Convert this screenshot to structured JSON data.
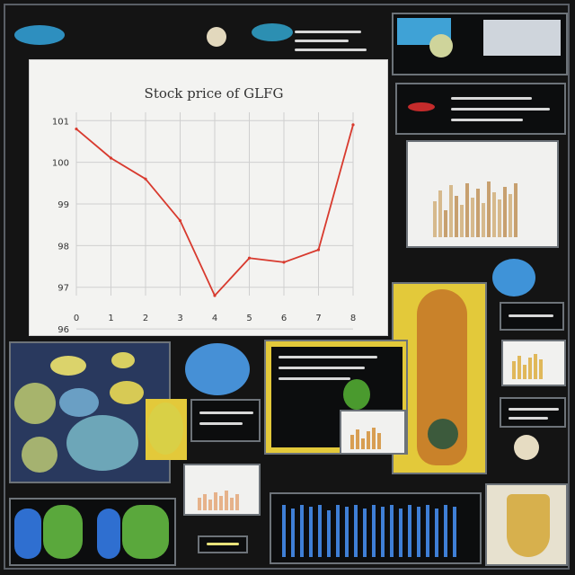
{
  "chart_data": {
    "type": "line",
    "title": "Stock price of GLFG",
    "x": [
      0,
      1,
      2,
      3,
      4,
      5,
      6,
      7,
      8
    ],
    "xticks": [
      "0",
      "1",
      "2",
      "3",
      "4",
      "5",
      "6",
      "7",
      "8"
    ],
    "yticks": [
      "101",
      "100",
      "99",
      "98",
      "97",
      "96"
    ],
    "series": [
      {
        "values": [
          100.8,
          100.1,
          99.6,
          98.6,
          96.8,
          97.7,
          97.6,
          97.9,
          100.9
        ]
      }
    ],
    "ylim": [
      96.8,
      101.2
    ],
    "xlim": [
      0,
      8
    ],
    "grid": true,
    "colors": {
      "line": "#d83a2e",
      "grid": "#cfcfcf",
      "axis_text": "#333333"
    }
  }
}
